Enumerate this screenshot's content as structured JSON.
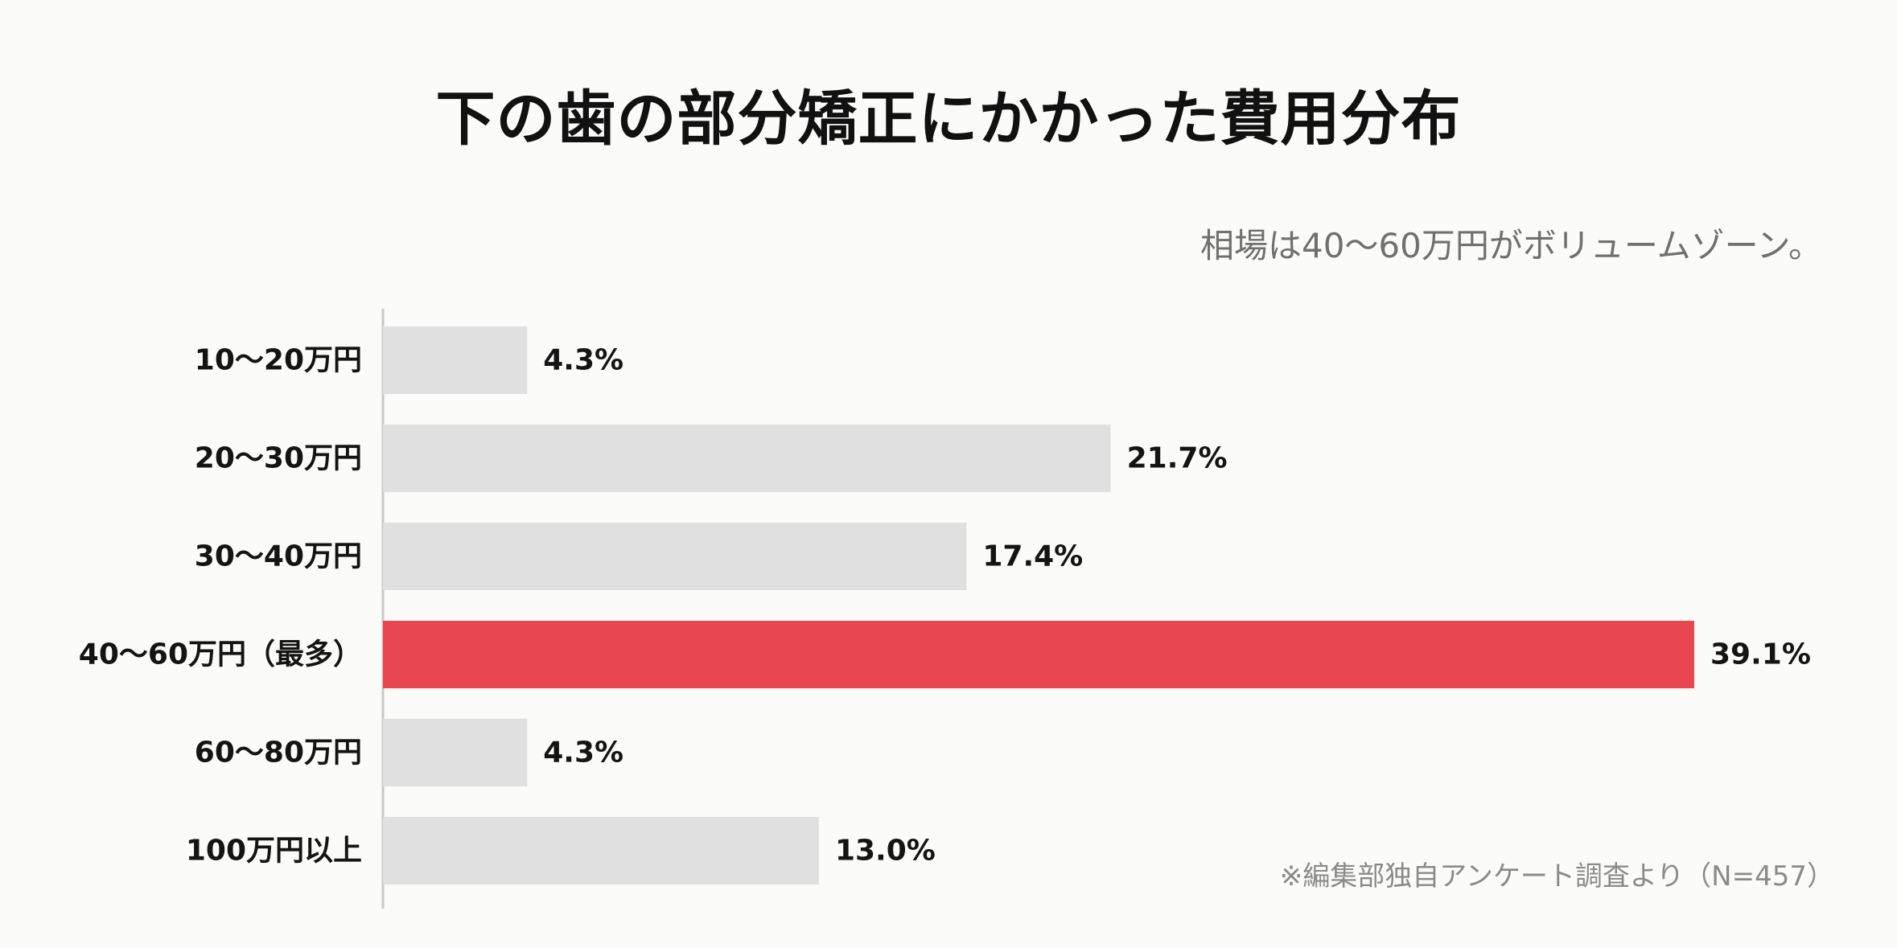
{
  "chart_data": {
    "type": "bar",
    "orientation": "horizontal",
    "title": "下の歯の部分矯正にかかった費用分布",
    "subtitle": "相場は40〜60万円がボリュームゾーン。",
    "note": "※編集部独自アンケート調査より（N=457）",
    "categories": [
      "10〜20万円",
      "20〜30万円",
      "30〜40万円",
      "40〜60万円（最多）",
      "60〜80万円",
      "100万円以上"
    ],
    "values": [
      4.3,
      21.7,
      17.4,
      39.1,
      4.3,
      13.0
    ],
    "value_labels": [
      "4.3%",
      "21.7%",
      "17.4%",
      "39.1%",
      "4.3%",
      "13.0%"
    ],
    "highlight_index": 3,
    "xlim": [
      0,
      39.1
    ],
    "grid": false,
    "legend": "none",
    "colors": {
      "bar": "#e0e0e0",
      "highlight": "#e8474f",
      "axis": "#c9c9c9"
    }
  }
}
